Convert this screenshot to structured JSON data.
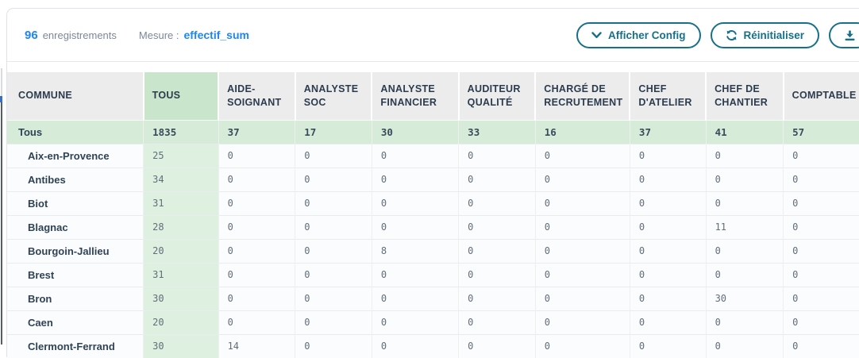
{
  "toolbar": {
    "record_count": "96",
    "record_count_label": "enregistrements",
    "measure_label": "Mesure :",
    "measure_value": "effectif_sum",
    "show_config_label": "Afficher Config",
    "reset_label": "Réinitialiser",
    "icons": {
      "config": "chevron-down-icon",
      "reset": "refresh-icon",
      "export": "download-icon"
    }
  },
  "colors": {
    "accent_blue": "#1f87ee",
    "teal": "#177089",
    "header_bg": "#ececec",
    "green_header_cell": "#c9e5cb",
    "green_total_row": "#d6ecd8",
    "green_column_cell": "#def0e0",
    "text_dark": "#2f4356",
    "text_gray": "#7b8899"
  },
  "table": {
    "columns": [
      "COMMUNE",
      "TOUS",
      "AIDE-SOIGNANT",
      "ANALYSTE SOC",
      "ANALYSTE FINANCIER",
      "AUDITEUR QUALITÉ",
      "CHARGÉ DE RECRUTEMENT",
      "CHEF D'ATELIER",
      "CHEF DE CHANTIER",
      "COMPTABLE"
    ],
    "rows": [
      {
        "commune": "Tous",
        "is_total": true,
        "values": [
          "1835",
          "37",
          "17",
          "30",
          "33",
          "16",
          "37",
          "41",
          "57"
        ]
      },
      {
        "commune": "Aix-en-Provence",
        "values": [
          "25",
          "0",
          "0",
          "0",
          "0",
          "0",
          "0",
          "0",
          "0"
        ]
      },
      {
        "commune": "Antibes",
        "values": [
          "34",
          "0",
          "0",
          "0",
          "0",
          "0",
          "0",
          "0",
          "0"
        ]
      },
      {
        "commune": "Biot",
        "values": [
          "31",
          "0",
          "0",
          "0",
          "0",
          "0",
          "0",
          "0",
          "0"
        ]
      },
      {
        "commune": "Blagnac",
        "values": [
          "28",
          "0",
          "0",
          "0",
          "0",
          "0",
          "0",
          "11",
          "0"
        ]
      },
      {
        "commune": "Bourgoin-Jallieu",
        "values": [
          "20",
          "0",
          "0",
          "8",
          "0",
          "0",
          "0",
          "0",
          "0"
        ]
      },
      {
        "commune": "Brest",
        "values": [
          "31",
          "0",
          "0",
          "0",
          "0",
          "0",
          "0",
          "0",
          "0"
        ]
      },
      {
        "commune": "Bron",
        "values": [
          "30",
          "0",
          "0",
          "0",
          "0",
          "0",
          "0",
          "30",
          "0"
        ]
      },
      {
        "commune": "Caen",
        "values": [
          "20",
          "0",
          "0",
          "0",
          "0",
          "0",
          "0",
          "0",
          "0"
        ]
      },
      {
        "commune": "Clermont-Ferrand",
        "is_partial": true,
        "values": [
          "30",
          "14",
          "0",
          "0",
          "0",
          "0",
          "0",
          "0",
          "0"
        ]
      }
    ]
  }
}
